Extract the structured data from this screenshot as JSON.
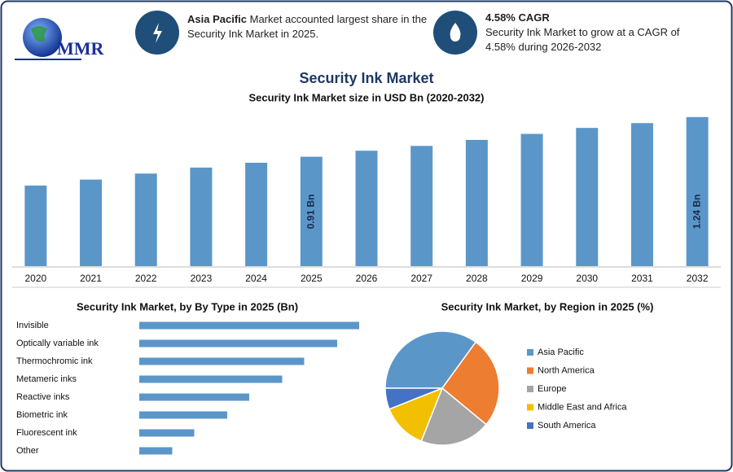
{
  "header": {
    "logo": "MMR",
    "info1": {
      "bold": "Asia Pacific",
      "text": "Market accounted largest share in the Security Ink Market in 2025."
    },
    "info2": {
      "bold": "4.58% CAGR",
      "text": "Security Ink Market to grow at a CAGR of 4.58% during 2026-2032"
    }
  },
  "chart_data": [
    {
      "type": "bar",
      "title": "Security Ink Market",
      "subtitle": "Security Ink Market size in USD Bn (2020-2032)",
      "categories": [
        "2020",
        "2021",
        "2022",
        "2023",
        "2024",
        "2025",
        "2026",
        "2027",
        "2028",
        "2029",
        "2030",
        "2031",
        "2032"
      ],
      "values": [
        0.67,
        0.72,
        0.77,
        0.82,
        0.86,
        0.91,
        0.96,
        1.0,
        1.05,
        1.1,
        1.15,
        1.19,
        1.24
      ],
      "value_labels": [
        null,
        null,
        null,
        null,
        null,
        "0.91 Bn",
        null,
        null,
        null,
        null,
        null,
        null,
        "1.24 Bn"
      ],
      "color": "#5b96c9",
      "ylim": [
        0,
        1.3
      ]
    },
    {
      "type": "bar",
      "orientation": "horizontal",
      "title": "Security Ink Market, by By Type in 2025 (Bn)",
      "categories": [
        "Invisible",
        "Optically variable ink",
        "Thermochromic ink",
        "Metameric inks",
        "Reactive inks",
        "Biometric ink",
        "Fluorescent ink",
        "Other"
      ],
      "values": [
        0.2,
        0.18,
        0.15,
        0.13,
        0.1,
        0.08,
        0.05,
        0.03
      ],
      "color": "#5b96c9",
      "xlim": [
        0,
        0.2
      ]
    },
    {
      "type": "pie",
      "title": "Security Ink Market, by Region in 2025 (%)",
      "categories": [
        "Asia Pacific",
        "North America",
        "Europe",
        "Middle East and Africa",
        "South America"
      ],
      "values": [
        35,
        26,
        20,
        13,
        6
      ],
      "colors": [
        "#5b96c9",
        "#ed7d31",
        "#a5a5a5",
        "#f2c000",
        "#4472c4"
      ]
    }
  ]
}
